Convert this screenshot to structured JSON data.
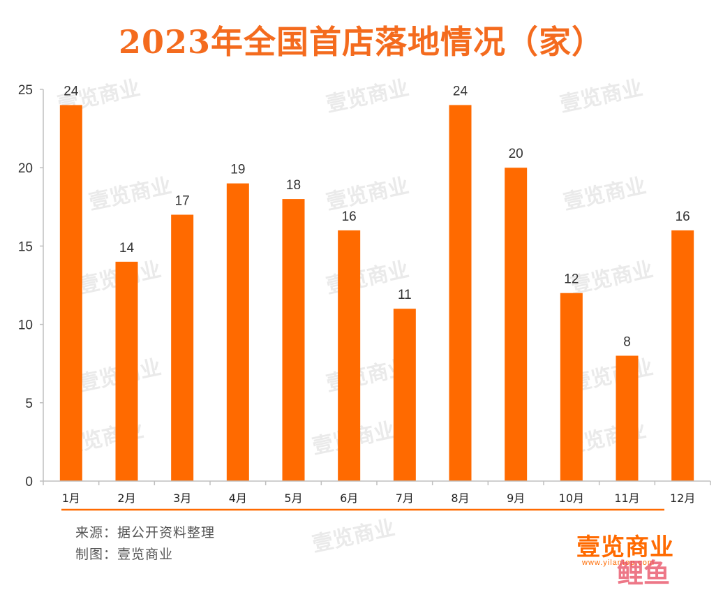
{
  "chart_data": {
    "type": "bar",
    "title": "2023年全国首店落地情况（家）",
    "categories": [
      "1月",
      "2月",
      "3月",
      "4月",
      "5月",
      "6月",
      "7月",
      "8月",
      "9月",
      "10月",
      "11月",
      "12月"
    ],
    "values": [
      24,
      14,
      17,
      19,
      18,
      16,
      11,
      24,
      20,
      12,
      8,
      16
    ],
    "ylim": [
      0,
      25
    ],
    "yticks": [
      0,
      5,
      10,
      15,
      20,
      25
    ],
    "xlabel": "",
    "ylabel": "",
    "grid": false,
    "data_labels": true,
    "bar_color": "#ff6a00",
    "title_color": "#f46b1e"
  },
  "footer": {
    "source": "来源：据公开资料整理",
    "maker": "制图：壹览商业"
  },
  "brand": {
    "logo_text": "壹览商业",
    "url": "www.yilantop.com",
    "corner_mark": "鲤鱼",
    "watermark": "壹览商业"
  }
}
